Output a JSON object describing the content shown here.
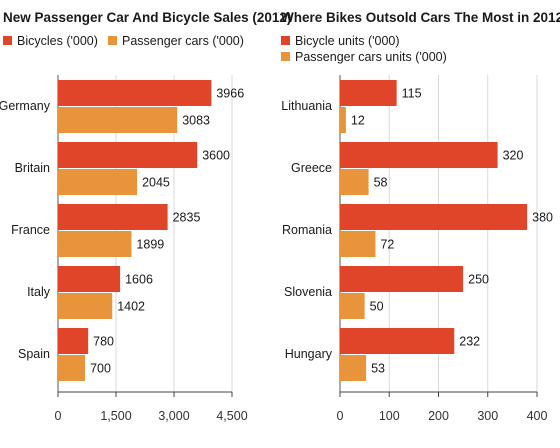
{
  "colors": {
    "series_0": "#e0452a",
    "series_1": "#e8943a",
    "grid": "#d9d9d9",
    "axis": "#444444"
  },
  "chart_data": [
    {
      "type": "bar",
      "orientation": "horizontal",
      "title": "New Passenger Car And Bicycle Sales (2012)",
      "categories": [
        "Germany",
        "Britain",
        "France",
        "Italy",
        "Spain"
      ],
      "series": [
        {
          "name": "Bicycles ('000)",
          "values": [
            3966,
            3600,
            2835,
            1606,
            780
          ]
        },
        {
          "name": "Passenger cars ('000)",
          "values": [
            3083,
            2045,
            1899,
            1402,
            700
          ]
        }
      ],
      "xlim": [
        0,
        4500
      ],
      "xticks": [
        0,
        1500,
        3000,
        4500
      ],
      "xtick_labels": [
        "0",
        "1,500",
        "3,000",
        "4,500"
      ],
      "grid": true,
      "legend_position": "top"
    },
    {
      "type": "bar",
      "orientation": "horizontal",
      "title": "Where Bikes Outsold Cars The Most in 2012",
      "categories": [
        "Lithuania",
        "Greece",
        "Romania",
        "Slovenia",
        "Hungary"
      ],
      "series": [
        {
          "name": "Bicycle units ('000)",
          "values": [
            115,
            320,
            380,
            250,
            232
          ]
        },
        {
          "name": "Passenger cars units ('000)",
          "values": [
            12,
            58,
            72,
            50,
            53
          ]
        }
      ],
      "xlim": [
        0,
        400
      ],
      "xticks": [
        0,
        100,
        200,
        300,
        400
      ],
      "xtick_labels": [
        "0",
        "100",
        "200",
        "300",
        "400"
      ],
      "grid": true,
      "legend_position": "top"
    }
  ]
}
